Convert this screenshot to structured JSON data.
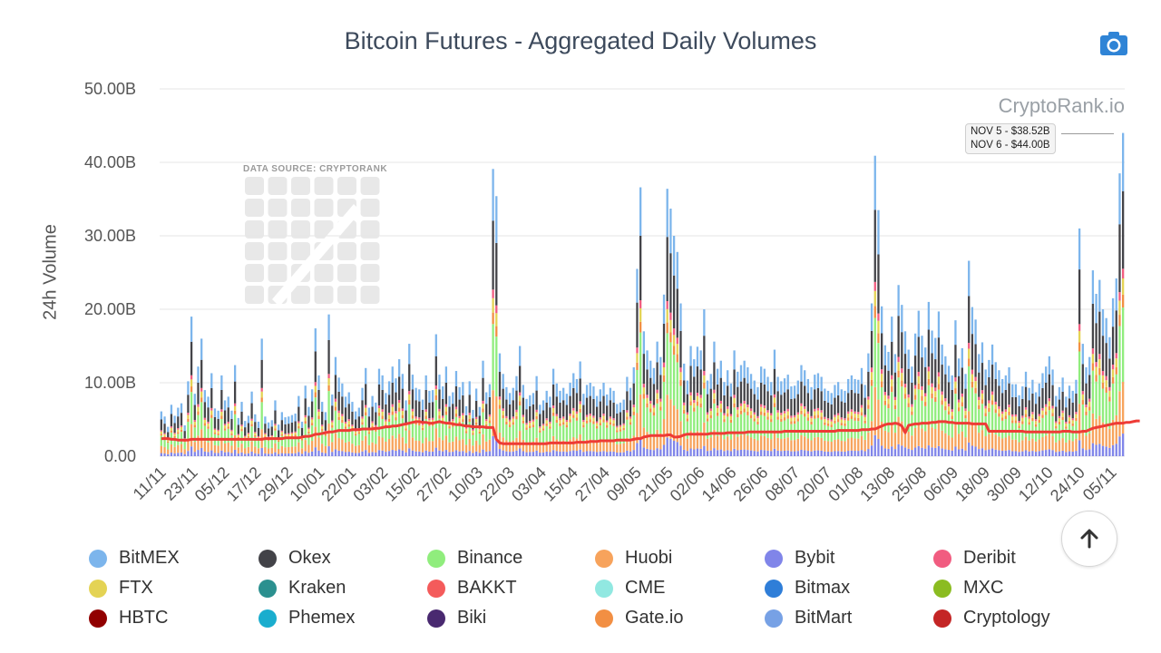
{
  "title": "Bitcoin Futures - Aggregated Daily Volumes",
  "watermark": "CryptoRank.io",
  "data_source_label": "DATA SOURCE: CRYPTORANK",
  "camera_icon": "camera-icon",
  "scroll_top_icon": "arrow-up-icon",
  "tooltip": {
    "line1": "NOV 5 - $38.52B",
    "line2": "NOV 6 - $44.00B"
  },
  "chart_data": {
    "type": "bar",
    "stacked": true,
    "title": "Bitcoin Futures - Aggregated Daily Volumes",
    "xlabel": "",
    "ylabel": "24h Volume",
    "ylim": [
      0,
      50
    ],
    "y_unit": "B",
    "y_ticks": [
      "0.00",
      "10.00B",
      "20.00B",
      "30.00B",
      "40.00B",
      "50.00B"
    ],
    "x_ticks": [
      "11/11",
      "23/11",
      "05/12",
      "17/12",
      "29/12",
      "10/01",
      "22/01",
      "03/02",
      "15/02",
      "27/02",
      "10/03",
      "22/03",
      "03/04",
      "15/04",
      "27/04",
      "09/05",
      "21/05",
      "02/06",
      "14/06",
      "26/06",
      "08/07",
      "20/07",
      "01/08",
      "13/08",
      "25/08",
      "06/09",
      "18/09",
      "30/09",
      "12/10",
      "24/10",
      "05/11"
    ],
    "grid": true,
    "legend_position": "bottom",
    "series": [
      {
        "name": "BitMEX",
        "color": "#7cb5ec"
      },
      {
        "name": "Okex",
        "color": "#434348"
      },
      {
        "name": "Binance",
        "color": "#90ed7d"
      },
      {
        "name": "Huobi",
        "color": "#f7a35c"
      },
      {
        "name": "Bybit",
        "color": "#8085e9"
      },
      {
        "name": "Deribit",
        "color": "#f15c80"
      },
      {
        "name": "FTX",
        "color": "#e4d354"
      },
      {
        "name": "Kraken",
        "color": "#2b908f"
      },
      {
        "name": "BAKKT",
        "color": "#f45b5b"
      },
      {
        "name": "CME",
        "color": "#91e8e1"
      },
      {
        "name": "Bitmax",
        "color": "#2f7ed8"
      },
      {
        "name": "MXC",
        "color": "#8bbc21"
      },
      {
        "name": "HBTC",
        "color": "#910000"
      },
      {
        "name": "Phemex",
        "color": "#1aadce"
      },
      {
        "name": "Biki",
        "color": "#492970"
      },
      {
        "name": "Gate.io",
        "color": "#f28f43"
      },
      {
        "name": "BitMart",
        "color": "#77a1e5"
      },
      {
        "name": "Cryptology",
        "color": "#c42525"
      }
    ],
    "daily_totals": [
      6.1,
      5.4,
      4.0,
      7.0,
      5.5,
      6.6,
      7.2,
      4.2,
      10.2,
      19.0,
      8.5,
      12.2,
      16.0,
      9.0,
      8.1,
      11.3,
      6.5,
      6.2,
      11.0,
      7.6,
      8.1,
      6.2,
      12.4,
      5.2,
      7.4,
      4.8,
      5.5,
      8.8,
      5.7,
      4.7,
      16.0,
      5.4,
      4.6,
      4.9,
      7.6,
      4.3,
      6.0,
      5.3,
      5.4,
      5.6,
      5.8,
      8.2,
      4.7,
      9.6,
      6.7,
      9.1,
      17.4,
      11.0,
      7.4,
      6.0,
      19.3,
      8.4,
      13.5,
      10.7,
      9.9,
      8.1,
      8.7,
      7.4,
      6.1,
      6.6,
      9.3,
      12.0,
      6.6,
      8.2,
      7.3,
      11.9,
      11.0,
      8.6,
      10.2,
      12.2,
      10.6,
      13.2,
      11.2,
      7.6,
      15.3,
      11.1,
      9.3,
      9.1,
      7.7,
      11.0,
      8.9,
      9.0,
      16.6,
      11.1,
      9.5,
      12.2,
      8.2,
      8.7,
      11.6,
      9.4,
      10.1,
      6.8,
      10.2,
      6.3,
      9.2,
      6.7,
      13.0,
      8.7,
      9.8,
      39.1,
      35.4,
      14.0,
      11.2,
      9.4,
      8.6,
      9.3,
      10.9,
      15.0,
      9.7,
      7.8,
      8.3,
      8.6,
      10.9,
      7.0,
      7.6,
      8.9,
      8.1,
      11.9,
      9.9,
      8.9,
      9.3,
      8.5,
      10.0,
      11.3,
      10.5,
      12.9,
      8.5,
      9.7,
      10.0,
      9.5,
      8.2,
      9.1,
      10.0,
      8.4,
      9.3,
      8.9,
      7.1,
      7.3,
      7.7,
      10.8,
      9.3,
      12.1,
      25.5,
      36.6,
      17.0,
      14.4,
      13.0,
      12.0,
      15.6,
      13.5,
      22.0,
      36.4,
      33.7,
      30.0,
      27.8,
      20.8,
      12.6,
      10.3,
      15.0,
      13.2,
      14.9,
      14.4,
      20.0,
      10.3,
      11.2,
      15.6,
      11.9,
      13.0,
      10.1,
      11.7,
      9.9,
      14.4,
      11.5,
      12.4,
      13.0,
      12.1,
      11.2,
      10.3,
      9.4,
      12.2,
      11.9,
      10.8,
      10.1,
      14.5,
      10.8,
      10.2,
      10.6,
      11.1,
      9.5,
      9.6,
      10.3,
      12.4,
      11.7,
      10.5,
      9.4,
      11.1,
      11.3,
      10.8,
      9.2,
      8.9,
      8.6,
      9.7,
      10.1,
      9.1,
      8.9,
      10.5,
      11.0,
      10.5,
      10.4,
      12.0,
      9.7,
      14.0,
      20.8,
      40.9,
      33.5,
      20.4,
      15.1,
      14.2,
      19.0,
      13.9,
      23.3,
      20.6,
      17.0,
      14.5,
      12.2,
      16.7,
      19.8,
      16.4,
      14.8,
      21.0,
      17.1,
      16.1,
      19.7,
      15.2,
      13.6,
      12.3,
      11.0,
      18.5,
      13.3,
      14.7,
      11.2,
      26.6,
      20.3,
      18.6,
      13.9,
      15.5,
      11.8,
      13.1,
      15.2,
      12.8,
      11.7,
      10.5,
      11.0,
      12.1,
      9.8,
      9.8,
      8.3,
      9.5,
      11.5,
      9.3,
      10.4,
      8.7,
      9.9,
      11.3,
      12.2,
      13.6,
      11.8,
      8.2,
      9.4,
      10.7,
      8.1,
      9.6,
      8.9,
      10.4,
      31.0,
      15.3,
      12.1,
      13.5,
      25.3,
      22.1,
      24.0,
      20.0,
      18.8,
      16.2,
      21.5,
      24.2,
      38.5,
      44.0
    ],
    "average_line": [
      2.4,
      2.4,
      2.4,
      2.3,
      2.3,
      2.2,
      2.2,
      2.2,
      2.2,
      2.3,
      2.3,
      2.3,
      2.3,
      2.3,
      2.3,
      2.3,
      2.3,
      2.3,
      2.3,
      2.3,
      2.3,
      2.3,
      2.3,
      2.3,
      2.3,
      2.3,
      2.3,
      2.3,
      2.3,
      2.3,
      2.3,
      2.4,
      2.4,
      2.4,
      2.4,
      2.4,
      2.4,
      2.5,
      2.5,
      2.5,
      2.5,
      2.5,
      2.6,
      2.7,
      2.7,
      2.8,
      3.0,
      3.0,
      3.1,
      3.2,
      3.3,
      3.3,
      3.4,
      3.5,
      3.5,
      3.5,
      3.5,
      3.6,
      3.6,
      3.6,
      3.7,
      3.7,
      3.7,
      3.7,
      3.8,
      3.8,
      3.9,
      4.0,
      4.0,
      4.1,
      4.1,
      4.2,
      4.3,
      4.4,
      4.5,
      4.6,
      4.7,
      4.7,
      4.6,
      4.6,
      4.5,
      4.5,
      4.6,
      4.7,
      4.6,
      4.5,
      4.5,
      4.4,
      4.3,
      4.3,
      4.2,
      4.1,
      4.1,
      4.0,
      4.0,
      4.0,
      4.0,
      3.9,
      3.9,
      3.9,
      2.3,
      1.8,
      1.7,
      1.7,
      1.7,
      1.7,
      1.7,
      1.7,
      1.7,
      1.7,
      1.7,
      1.7,
      1.7,
      1.7,
      1.7,
      1.7,
      1.8,
      1.8,
      1.8,
      1.8,
      1.8,
      1.8,
      1.8,
      1.8,
      1.9,
      1.9,
      1.9,
      1.9,
      2.0,
      2.0,
      2.0,
      2.1,
      2.1,
      2.1,
      2.1,
      2.1,
      2.2,
      2.2,
      2.2,
      2.2,
      2.2,
      2.3,
      2.4,
      2.4,
      2.6,
      2.7,
      2.8,
      2.8,
      2.8,
      2.8,
      2.8,
      2.9,
      2.9,
      2.6,
      2.6,
      2.7,
      2.9,
      3.0,
      3.0,
      3.0,
      3.0,
      3.0,
      3.0,
      3.0,
      3.1,
      3.1,
      3.1,
      3.1,
      3.1,
      3.2,
      3.2,
      3.2,
      3.2,
      3.2,
      3.2,
      3.3,
      3.3,
      3.3,
      3.3,
      3.3,
      3.3,
      3.3,
      3.3,
      3.3,
      3.3,
      3.3,
      3.4,
      3.4,
      3.4,
      3.4,
      3.4,
      3.4,
      3.4,
      3.4,
      3.4,
      3.4,
      3.4,
      3.4,
      3.4,
      3.4,
      3.4,
      3.4,
      3.5,
      3.5,
      3.5,
      3.5,
      3.5,
      3.5,
      3.5,
      3.6,
      3.6,
      3.6,
      3.7,
      3.7,
      3.9,
      4.1,
      4.3,
      4.4,
      4.4,
      4.5,
      4.4,
      4.1,
      3.2,
      4.2,
      4.3,
      4.4,
      4.4,
      4.5,
      4.5,
      4.5,
      4.6,
      4.6,
      4.7,
      4.7,
      4.7,
      4.6,
      4.6,
      4.5,
      4.5,
      4.5,
      4.5,
      4.5,
      4.4,
      4.4,
      4.4,
      4.4,
      4.4,
      3.4,
      3.4,
      3.4,
      3.4,
      3.4,
      3.4,
      3.4,
      3.4,
      3.4,
      3.4,
      3.4,
      3.3,
      3.3,
      3.3,
      3.3,
      3.3,
      3.3,
      3.3,
      3.3,
      3.3,
      3.3,
      3.3,
      3.4,
      3.4,
      3.4,
      3.3,
      3.3,
      3.3,
      3.4,
      3.4,
      3.6,
      3.8,
      3.9,
      4.0,
      4.1,
      4.2,
      4.3,
      4.4,
      4.5,
      4.5,
      4.5,
      4.6,
      4.6,
      4.7,
      4.8,
      4.8
    ]
  }
}
